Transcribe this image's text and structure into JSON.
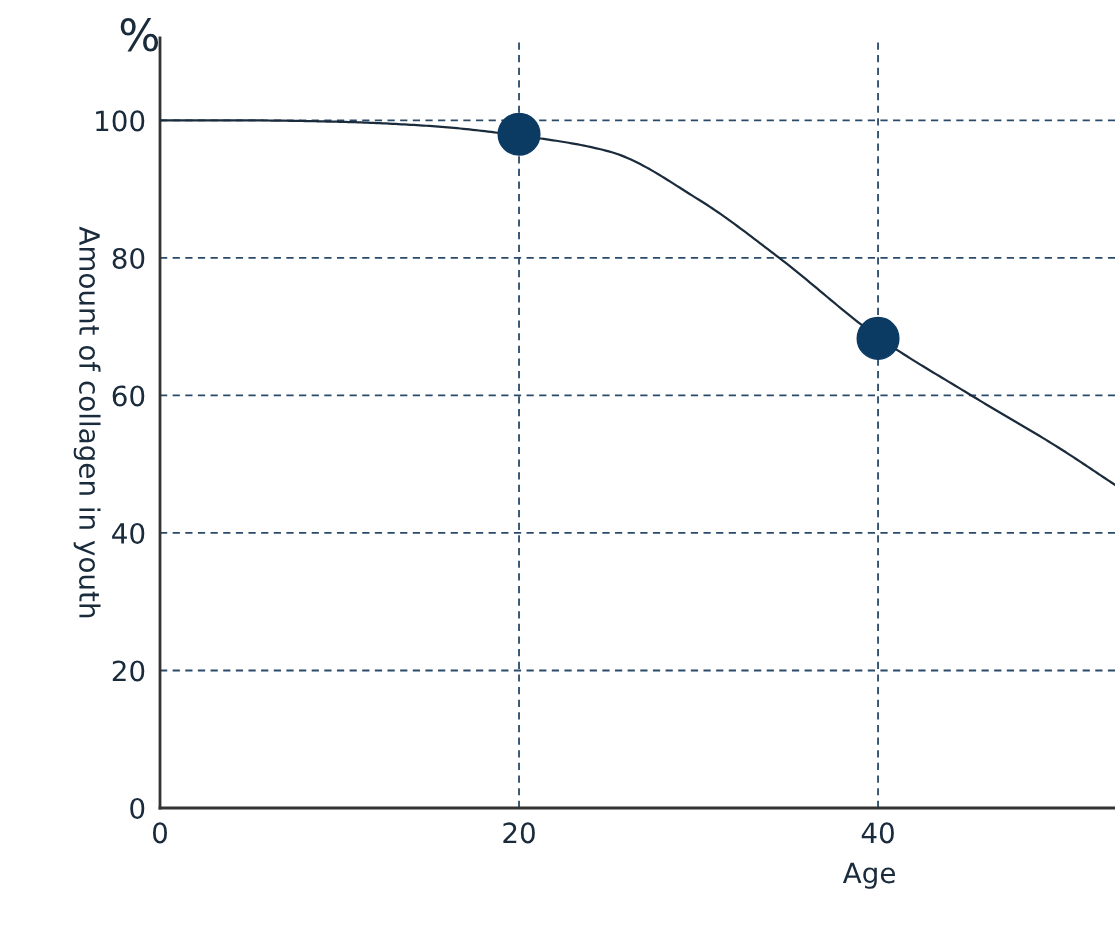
{
  "chart_data": {
    "type": "line",
    "xlabel": "Age",
    "ylabel": "Amount of collagen in youth",
    "annotations": [
      "%"
    ],
    "xlim": [
      0,
      53.2
    ],
    "ylim": [
      0,
      112
    ],
    "xticks": [
      0,
      20,
      40
    ],
    "yticks": [
      0,
      20,
      40,
      60,
      80,
      100
    ],
    "grid": true,
    "line_style": "solid",
    "series": [
      {
        "color": "#1a2b3c",
        "marker": "none",
        "x": [
          0,
          5,
          10,
          15,
          20,
          25,
          30,
          34.5,
          40,
          45.2,
          50,
          53.2
        ],
        "values": [
          100,
          100,
          99.8,
          99.2,
          97.8,
          95.5,
          88.5,
          80,
          68.5,
          60,
          52.5,
          47
        ]
      },
      {
        "type": "scatter",
        "color": "#0b3a63",
        "marker": "circle",
        "x": [
          20,
          40
        ],
        "values": [
          98,
          68.3
        ]
      }
    ]
  }
}
